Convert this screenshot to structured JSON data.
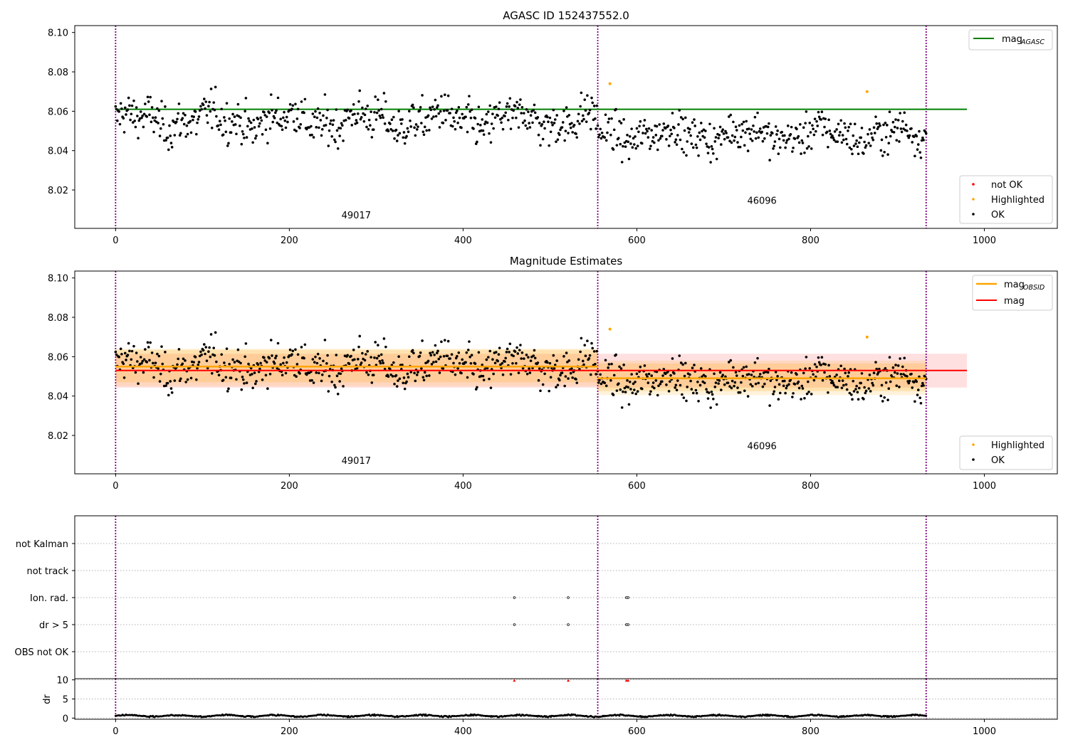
{
  "figure": {
    "title": "AGASC ID 152437552.0",
    "colors": {
      "ok": "#000000",
      "highlighted": "#ffa500",
      "not_ok": "#ff0000",
      "mag_agasc_line": "#008000",
      "mag_line": "#ff0000",
      "mag_obsid_line": "#ffa500",
      "obs_boundary": "#800080",
      "grid": "#b0b0b0"
    }
  },
  "chart_data": [
    {
      "type": "scatter",
      "title": "",
      "xlabel": "",
      "ylabel": "",
      "xlim": [
        -47,
        1084
      ],
      "ylim": [
        8.0005,
        8.1035
      ],
      "x_ticks": [
        0,
        200,
        400,
        600,
        800,
        1000
      ],
      "y_ticks": [
        8.02,
        8.04,
        8.06,
        8.08,
        8.1
      ],
      "y_tick_labels": [
        "8.02",
        "8.04",
        "8.06",
        "8.08",
        "8.10"
      ],
      "n_points": 934,
      "obs_boundaries": [
        0,
        555,
        933
      ],
      "obsids": [
        {
          "label": "49017",
          "x_range": [
            0,
            555
          ],
          "mean": 8.0555,
          "spread": 0.0095
        },
        {
          "label": "46096",
          "x_range": [
            555,
            933
          ],
          "mean": 8.0483,
          "spread": 0.0085
        }
      ],
      "obsid_label_positions": [
        {
          "x": 277,
          "y": 8.0055
        },
        {
          "x": 744,
          "y": 8.013
        }
      ],
      "mag_agasc": {
        "value": 8.061,
        "x_range": [
          0,
          980
        ]
      },
      "highlighted_points": [
        {
          "x": 569,
          "y": 8.074
        },
        {
          "x": 865,
          "y": 8.07
        }
      ],
      "not_ok_points": [],
      "legend_top": {
        "position": "upper right",
        "entries": [
          "mag"
        ],
        "subscript": "AGASC"
      },
      "legend_bottom": {
        "position": "lower right",
        "entries": [
          "not OK",
          "Highlighted",
          "OK"
        ]
      }
    },
    {
      "type": "scatter",
      "title": "Magnitude Estimates",
      "xlabel": "",
      "ylabel": "",
      "xlim": [
        -47,
        1084
      ],
      "ylim": [
        8.0005,
        8.1035
      ],
      "x_ticks": [
        0,
        200,
        400,
        600,
        800,
        1000
      ],
      "y_ticks": [
        8.02,
        8.04,
        8.06,
        8.08,
        8.1
      ],
      "y_tick_labels": [
        "8.02",
        "8.04",
        "8.06",
        "8.08",
        "8.10"
      ],
      "obs_boundaries": [
        0,
        555,
        933
      ],
      "obsid_label_positions": [
        {
          "x": 277,
          "y": 8.0055
        },
        {
          "x": 744,
          "y": 8.013
        }
      ],
      "mag": {
        "value": 8.053,
        "band": [
          8.0443,
          8.0615
        ],
        "x_range": [
          0,
          980
        ]
      },
      "mag_obsid": [
        {
          "x_range": [
            0,
            555
          ],
          "value": 8.055,
          "inner_band": [
            8.047,
            8.0635
          ],
          "outer_band": [
            8.045,
            8.064
          ]
        },
        {
          "x_range": [
            555,
            933
          ],
          "value": 8.049,
          "inner_band": [
            8.0425,
            8.0565
          ],
          "outer_band": [
            8.0405,
            8.058
          ]
        }
      ],
      "legend_top": {
        "position": "upper right",
        "entries": [
          "mag",
          "mag"
        ],
        "subscripts": [
          "OBSID",
          ""
        ]
      },
      "legend_bottom": {
        "position": "lower right",
        "entries": [
          "Highlighted",
          "OK"
        ]
      }
    },
    {
      "type": "scatter",
      "title": "",
      "xlabel": "",
      "ylabel": "",
      "xlim": [
        -47,
        1084
      ],
      "flag_labels": [
        "OBS not OK",
        "dr > 5",
        "Ion. rad.",
        "not track",
        "not Kalman"
      ],
      "flag_points": {
        "dr > 5": [
          459,
          521,
          588,
          590
        ],
        "Ion. rad.": [
          459,
          521,
          588,
          590
        ]
      },
      "obs_boundaries": [
        0,
        555,
        933
      ]
    },
    {
      "type": "scatter",
      "title": "",
      "xlabel": "",
      "ylabel": "dr",
      "xlim": [
        -47,
        1084
      ],
      "ylim": [
        -0.3,
        10.3
      ],
      "x_ticks": [
        0,
        200,
        400,
        600,
        800,
        1000
      ],
      "y_ticks": [
        0,
        5,
        10
      ],
      "typical_dr": [
        0.2,
        1.0
      ],
      "red_points": [
        {
          "x": 459,
          "y": 9.8
        },
        {
          "x": 521,
          "y": 9.8
        },
        {
          "x": 588,
          "y": 9.8
        },
        {
          "x": 590,
          "y": 9.8
        }
      ],
      "obs_boundaries": [
        0,
        555,
        933
      ]
    }
  ]
}
